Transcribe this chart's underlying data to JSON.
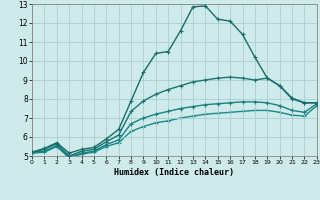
{
  "xlabel": "Humidex (Indice chaleur)",
  "bg_color": "#ceeaea",
  "grid_color": "#aacece",
  "xlim": [
    0,
    23
  ],
  "ylim": [
    5,
    13
  ],
  "xticks": [
    0,
    1,
    2,
    3,
    4,
    5,
    6,
    7,
    8,
    9,
    10,
    11,
    12,
    13,
    14,
    15,
    16,
    17,
    18,
    19,
    20,
    21,
    22,
    23
  ],
  "yticks": [
    5,
    6,
    7,
    8,
    9,
    10,
    11,
    12,
    13
  ],
  "series": [
    {
      "x": [
        0,
        1,
        2,
        3,
        4,
        5,
        6,
        7,
        8,
        9,
        10,
        11,
        12,
        13,
        14,
        15,
        16,
        17,
        18,
        19,
        20,
        21,
        22,
        23
      ],
      "y": [
        5.2,
        5.4,
        5.7,
        5.15,
        5.35,
        5.45,
        5.9,
        6.4,
        7.9,
        9.4,
        10.4,
        10.5,
        11.6,
        12.85,
        12.9,
        12.2,
        12.1,
        11.4,
        10.2,
        9.1,
        8.7,
        8.05,
        7.8,
        7.8
      ],
      "color": "#1a6b6b",
      "lw": 1.0
    },
    {
      "x": [
        0,
        1,
        2,
        3,
        4,
        5,
        6,
        7,
        8,
        9,
        10,
        11,
        12,
        13,
        14,
        15,
        16,
        17,
        18,
        19,
        20,
        21,
        22,
        23
      ],
      "y": [
        5.2,
        5.35,
        5.65,
        5.0,
        5.25,
        5.35,
        5.75,
        6.1,
        7.35,
        7.9,
        8.25,
        8.5,
        8.7,
        8.9,
        9.0,
        9.1,
        9.15,
        9.1,
        9.0,
        9.1,
        8.7,
        8.0,
        7.8,
        7.8
      ],
      "color": "#1a7575",
      "lw": 1.0
    },
    {
      "x": [
        0,
        1,
        2,
        3,
        4,
        5,
        6,
        7,
        8,
        9,
        10,
        11,
        12,
        13,
        14,
        15,
        16,
        17,
        18,
        19,
        20,
        21,
        22,
        23
      ],
      "y": [
        5.2,
        5.25,
        5.55,
        4.95,
        5.15,
        5.25,
        5.6,
        5.85,
        6.7,
        7.0,
        7.2,
        7.35,
        7.5,
        7.6,
        7.7,
        7.75,
        7.8,
        7.85,
        7.85,
        7.8,
        7.65,
        7.4,
        7.3,
        7.75
      ],
      "color": "#1a8080",
      "lw": 1.0
    },
    {
      "x": [
        0,
        1,
        2,
        3,
        4,
        5,
        6,
        7,
        8,
        9,
        10,
        11,
        12,
        13,
        14,
        15,
        16,
        17,
        18,
        19,
        20,
        21,
        22,
        23
      ],
      "y": [
        5.15,
        5.2,
        5.5,
        4.9,
        5.1,
        5.2,
        5.5,
        5.7,
        6.3,
        6.55,
        6.75,
        6.85,
        7.0,
        7.1,
        7.2,
        7.25,
        7.3,
        7.35,
        7.4,
        7.4,
        7.3,
        7.15,
        7.1,
        7.65
      ],
      "color": "#1a8a8a",
      "lw": 1.0
    }
  ]
}
